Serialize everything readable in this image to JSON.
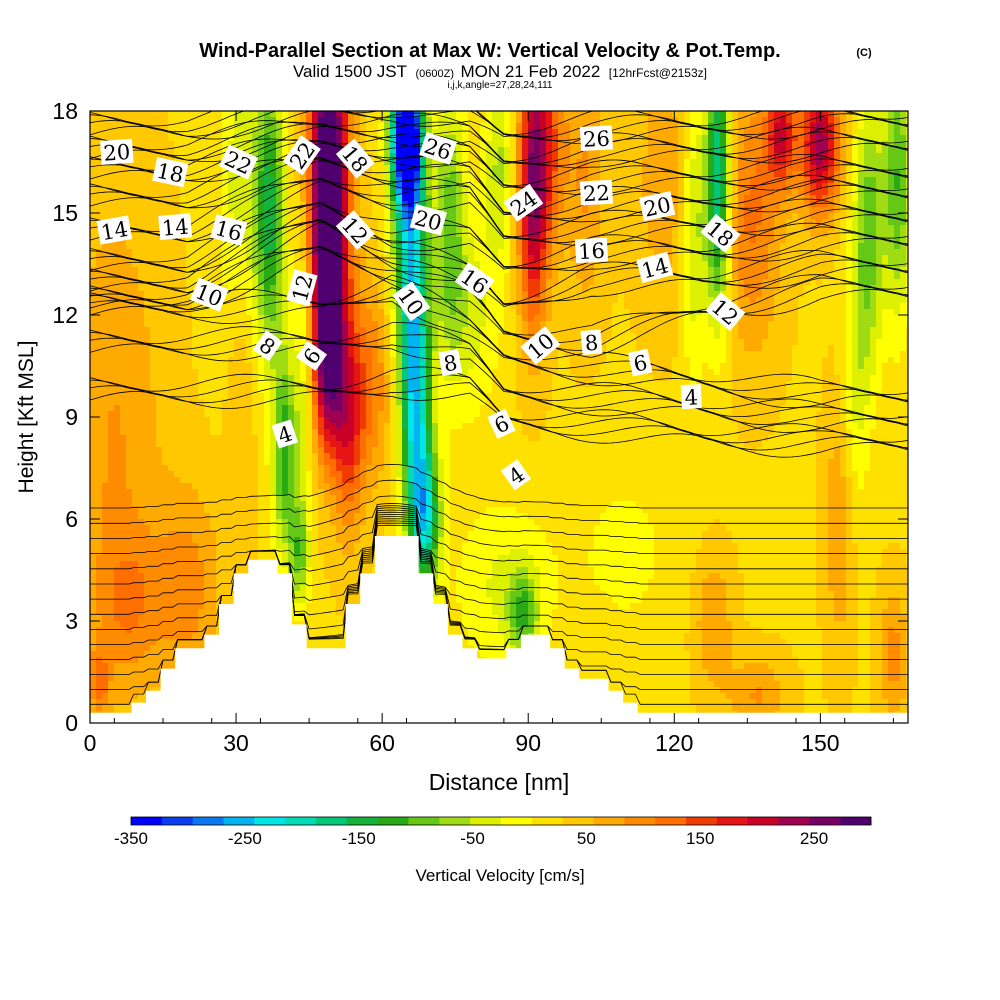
{
  "title": {
    "main": "Wind-Parallel Section at Max W: Vertical Velocity & Pot.Temp.",
    "copyright": "(C)",
    "valid_prefix": "Valid 1500 JST",
    "valid_z": "(0600Z)",
    "valid_date": "MON 21 Feb 2022",
    "forecast": "[12hrFcst@2153z]",
    "indices": "i,j,k,angle=27,28,24,111"
  },
  "colorbar": {
    "label": "Vertical Velocity [cm/s]",
    "tick_labels": [
      "-350",
      "-250",
      "-150",
      "-50",
      "50",
      "150",
      "250"
    ],
    "tick_values": [
      -350,
      -250,
      -150,
      -50,
      50,
      150,
      250
    ],
    "range": [
      -350,
      300
    ],
    "colors": [
      "#0000ff",
      "#0a3cf0",
      "#0a78f0",
      "#00b4f0",
      "#00e6e6",
      "#00dcb4",
      "#00c878",
      "#14b43c",
      "#28aa14",
      "#64c814",
      "#a0dc14",
      "#dcf000",
      "#ffff00",
      "#ffe100",
      "#ffc800",
      "#ffaa00",
      "#ff8c00",
      "#ff6e00",
      "#f03c00",
      "#e61414",
      "#c80028",
      "#a00050",
      "#780064",
      "#50006e"
    ]
  },
  "chart_data": {
    "type": "heatmap",
    "title": "Wind-Parallel Section at Max W: Vertical Velocity & Pot.Temp.",
    "xlabel": "Distance [nm]",
    "ylabel": "Height [Kft MSL]",
    "xlim": [
      0,
      168
    ],
    "ylim": [
      0,
      18
    ],
    "x_ticks": [
      0,
      30,
      60,
      90,
      120,
      150
    ],
    "y_ticks": [
      0,
      3,
      6,
      9,
      12,
      15,
      18
    ],
    "field": "Vertical Velocity [cm/s]",
    "contour_field": "Potential temperature",
    "background_value": 25,
    "velocity_features": [
      {
        "x": 5,
        "y": 8,
        "sx": 10,
        "sy": 8,
        "value": 60
      },
      {
        "x": 20,
        "y": 4,
        "sx": 7,
        "sy": 3,
        "value": 70
      },
      {
        "x": 31,
        "y": 11,
        "sx": 3,
        "sy": 5,
        "value": 60
      },
      {
        "x": 31,
        "y": 15,
        "sx": 4,
        "sy": 5,
        "value": -90
      },
      {
        "x": 37,
        "y": 15,
        "sx": 3,
        "sy": 4,
        "value": -170
      },
      {
        "x": 40,
        "y": 8,
        "sx": 2.5,
        "sy": 3,
        "value": -150
      },
      {
        "x": 43,
        "y": 5,
        "sx": 2,
        "sy": 1.5,
        "value": -110
      },
      {
        "x": 44,
        "y": 11,
        "sx": 2,
        "sy": 5,
        "value": -70
      },
      {
        "x": 49,
        "y": 15.5,
        "sx": 4,
        "sy": 5,
        "value": 360
      },
      {
        "x": 49,
        "y": 10.5,
        "sx": 3,
        "sy": 2.5,
        "value": 160
      },
      {
        "x": 53,
        "y": 8.5,
        "sx": 3,
        "sy": 3,
        "value": 110
      },
      {
        "x": 57,
        "y": 10,
        "sx": 5,
        "sy": 3,
        "value": 90
      },
      {
        "x": 65,
        "y": 17.3,
        "sx": 3,
        "sy": 2,
        "value": -420
      },
      {
        "x": 66,
        "y": 14,
        "sx": 3.5,
        "sy": 4,
        "value": -230
      },
      {
        "x": 67,
        "y": 9,
        "sx": 3,
        "sy": 3.5,
        "value": -230
      },
      {
        "x": 69,
        "y": 6,
        "sx": 3,
        "sy": 2,
        "value": -200
      },
      {
        "x": 74,
        "y": 15,
        "sx": 3,
        "sy": 4,
        "value": -110
      },
      {
        "x": 78,
        "y": 12,
        "sx": 6,
        "sy": 3,
        "value": -60
      },
      {
        "x": 85,
        "y": 4,
        "sx": 10,
        "sy": 2.5,
        "value": -55
      },
      {
        "x": 89,
        "y": 3.2,
        "sx": 3,
        "sy": 1.2,
        "value": -110
      },
      {
        "x": 84,
        "y": 16.5,
        "sx": 3,
        "sy": 3,
        "value": -80
      },
      {
        "x": 91,
        "y": 15.5,
        "sx": 3,
        "sy": 4,
        "value": 190
      },
      {
        "x": 94,
        "y": 17,
        "sx": 4,
        "sy": 3,
        "value": 110
      },
      {
        "x": 102,
        "y": 16,
        "sx": 4,
        "sy": 4,
        "value": 60
      },
      {
        "x": 110,
        "y": 5,
        "sx": 12,
        "sy": 3,
        "value": -30
      },
      {
        "x": 118,
        "y": 16,
        "sx": 6,
        "sy": 4,
        "value": 50
      },
      {
        "x": 124,
        "y": 14.5,
        "sx": 2.5,
        "sy": 4,
        "value": -90
      },
      {
        "x": 129,
        "y": 16,
        "sx": 2.5,
        "sy": 4,
        "value": -230
      },
      {
        "x": 128,
        "y": 3,
        "sx": 4,
        "sy": 2,
        "value": 60
      },
      {
        "x": 136,
        "y": 15,
        "sx": 6,
        "sy": 4,
        "value": 90
      },
      {
        "x": 142,
        "y": 17.3,
        "sx": 3,
        "sy": 1.5,
        "value": 160
      },
      {
        "x": 150,
        "y": 17,
        "sx": 4,
        "sy": 2,
        "value": 210
      },
      {
        "x": 154,
        "y": 6,
        "sx": 3,
        "sy": 4,
        "value": 60
      },
      {
        "x": 157,
        "y": 10,
        "sx": 3,
        "sy": 4,
        "value": -60
      },
      {
        "x": 160,
        "y": 14.5,
        "sx": 3,
        "sy": 4,
        "value": -120
      },
      {
        "x": 166,
        "y": 16,
        "sx": 3,
        "sy": 4,
        "value": -130
      },
      {
        "x": 2,
        "y": 1.2,
        "sx": 2,
        "sy": 1,
        "value": 75
      },
      {
        "x": 165,
        "y": 2,
        "sx": 3,
        "sy": 2,
        "value": 70
      },
      {
        "x": 137,
        "y": 0.8,
        "sx": 6,
        "sy": 1.2,
        "value": 60
      },
      {
        "x": 8,
        "y": 3.5,
        "sx": 6,
        "sy": 2,
        "value": 55
      }
    ],
    "terrain_profile": [
      [
        0,
        0.3
      ],
      [
        8.5,
        0.3
      ],
      [
        8.5,
        0.6
      ],
      [
        11.5,
        0.6
      ],
      [
        11.5,
        0.95
      ],
      [
        14.5,
        0.95
      ],
      [
        14.5,
        1.6
      ],
      [
        17.5,
        1.6
      ],
      [
        17.5,
        2.2
      ],
      [
        23.5,
        2.2
      ],
      [
        23.5,
        2.6
      ],
      [
        26.5,
        2.6
      ],
      [
        26.5,
        3.5
      ],
      [
        29.5,
        3.5
      ],
      [
        29.5,
        4.4
      ],
      [
        32.5,
        4.4
      ],
      [
        32.5,
        4.8
      ],
      [
        38.5,
        4.8
      ],
      [
        38.5,
        4.4
      ],
      [
        41.5,
        4.4
      ],
      [
        41.5,
        2.9
      ],
      [
        44.5,
        2.9
      ],
      [
        44.5,
        2.2
      ],
      [
        52.5,
        2.2
      ],
      [
        52.5,
        3.5
      ],
      [
        55.5,
        3.5
      ],
      [
        55.5,
        4.4
      ],
      [
        58.5,
        4.4
      ],
      [
        58.5,
        5.5
      ],
      [
        67.5,
        5.5
      ],
      [
        67.5,
        4.4
      ],
      [
        70.5,
        4.4
      ],
      [
        70.5,
        3.5
      ],
      [
        73.5,
        3.5
      ],
      [
        73.5,
        2.6
      ],
      [
        76.5,
        2.6
      ],
      [
        76.5,
        2.2
      ],
      [
        79.5,
        2.2
      ],
      [
        79.5,
        1.9
      ],
      [
        85.5,
        1.9
      ],
      [
        85.5,
        2.2
      ],
      [
        88.5,
        2.2
      ],
      [
        88.5,
        2.6
      ],
      [
        94.5,
        2.6
      ],
      [
        94.5,
        2.2
      ],
      [
        97.5,
        2.2
      ],
      [
        97.5,
        1.6
      ],
      [
        100.5,
        1.6
      ],
      [
        100.5,
        1.3
      ],
      [
        106.5,
        1.3
      ],
      [
        106.5,
        0.95
      ],
      [
        109.5,
        0.95
      ],
      [
        109.5,
        0.6
      ],
      [
        112.5,
        0.6
      ],
      [
        112.5,
        0.3
      ],
      [
        168,
        0.3
      ]
    ],
    "theta_label_x_positions": [
      20,
      47.5,
      62,
      78,
      85,
      103,
      126,
      150
    ],
    "theta_label_heights": [
      [
        null,
        9.5,
        9.8,
        9.6,
        8.7,
        8.5,
        8.2,
        8.0
      ],
      [
        null,
        10.9,
        11.2,
        10.6,
        9.5,
        9.3,
        9.0,
        8.7
      ],
      [
        null,
        12.0,
        12.6,
        11.3,
        10.5,
        10.2,
        9.8,
        9.4
      ],
      [
        12.2,
        13.7,
        13.1,
        12.3,
        11.2,
        11.0,
        11.9,
        12.5
      ],
      [
        12.7,
        14.5,
        13.6,
        12.9,
        12.0,
        12.8,
        12.8,
        13.2
      ],
      [
        13.3,
        15.0,
        14.2,
        14.0,
        13.1,
        13.6,
        13.6,
        14.0
      ],
      [
        14.2,
        15.7,
        15.3,
        15.2,
        14.0,
        14.3,
        14.4,
        14.7
      ],
      [
        15.2,
        16.3,
        16.0,
        15.8,
        14.7,
        15.0,
        15.1,
        15.4
      ],
      [
        16.0,
        16.8,
        16.7,
        16.4,
        15.5,
        15.8,
        15.8,
        16.0
      ],
      [
        16.6,
        17.3,
        17.3,
        17.0,
        16.2,
        16.6,
        16.6,
        16.8
      ],
      [
        17.3,
        17.8,
        17.9,
        17.6,
        17.0,
        17.3,
        17.3,
        17.5
      ]
    ],
    "theta_labels": [
      {
        "text": "20",
        "x": 5.5,
        "y": 16.8,
        "angle": -4
      },
      {
        "text": "18",
        "x": 16.5,
        "y": 16.2,
        "angle": 12
      },
      {
        "text": "22",
        "x": 30.5,
        "y": 16.5,
        "angle": 25
      },
      {
        "text": "22",
        "x": 43.5,
        "y": 16.7,
        "angle": -55
      },
      {
        "text": "18",
        "x": 54.5,
        "y": 16.6,
        "angle": 50
      },
      {
        "text": "26",
        "x": 71.5,
        "y": 16.9,
        "angle": 18
      },
      {
        "text": "26",
        "x": 104,
        "y": 17.2,
        "angle": -3
      },
      {
        "text": "14",
        "x": 5,
        "y": 14.5,
        "angle": -10
      },
      {
        "text": "14",
        "x": 17.5,
        "y": 14.6,
        "angle": -5
      },
      {
        "text": "16",
        "x": 28.5,
        "y": 14.5,
        "angle": 15
      },
      {
        "text": "12",
        "x": 54.5,
        "y": 14.5,
        "angle": 48
      },
      {
        "text": "20",
        "x": 69.5,
        "y": 14.8,
        "angle": 15
      },
      {
        "text": "24",
        "x": 89,
        "y": 15.3,
        "angle": -35
      },
      {
        "text": "22",
        "x": 104,
        "y": 15.6,
        "angle": -3
      },
      {
        "text": "20",
        "x": 116.5,
        "y": 15.2,
        "angle": -12
      },
      {
        "text": "18",
        "x": 129.5,
        "y": 14.4,
        "angle": 40
      },
      {
        "text": "16",
        "x": 103,
        "y": 13.9,
        "angle": -3
      },
      {
        "text": "14",
        "x": 116,
        "y": 13.4,
        "angle": -15
      },
      {
        "text": "12",
        "x": 43.5,
        "y": 12.8,
        "angle": -75
      },
      {
        "text": "10",
        "x": 66,
        "y": 12.4,
        "angle": 55
      },
      {
        "text": "16",
        "x": 79,
        "y": 13.0,
        "angle": 35
      },
      {
        "text": "12",
        "x": 130.5,
        "y": 12.1,
        "angle": 40
      },
      {
        "text": "10",
        "x": 24.5,
        "y": 12.6,
        "angle": 22
      },
      {
        "text": "8",
        "x": 36.5,
        "y": 11.1,
        "angle": 35
      },
      {
        "text": "6",
        "x": 45.5,
        "y": 10.8,
        "angle": -55
      },
      {
        "text": "8",
        "x": 74,
        "y": 10.6,
        "angle": -10
      },
      {
        "text": "10",
        "x": 92.5,
        "y": 11.1,
        "angle": -40
      },
      {
        "text": "8",
        "x": 103,
        "y": 11.2,
        "angle": -5
      },
      {
        "text": "6",
        "x": 113,
        "y": 10.6,
        "angle": -12
      },
      {
        "text": "4",
        "x": 123.5,
        "y": 9.6,
        "angle": -3
      },
      {
        "text": "6",
        "x": 84.5,
        "y": 8.8,
        "angle": -25
      },
      {
        "text": "4",
        "x": 40,
        "y": 8.5,
        "angle": -18
      },
      {
        "text": "4",
        "x": 87.5,
        "y": 7.3,
        "angle": -35
      }
    ]
  }
}
